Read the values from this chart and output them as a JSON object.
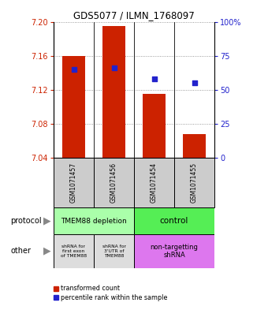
{
  "title": "GDS5077 / ILMN_1768097",
  "samples": [
    "GSM1071457",
    "GSM1071456",
    "GSM1071454",
    "GSM1071455"
  ],
  "bar_values": [
    7.16,
    7.195,
    7.115,
    7.068
  ],
  "bar_bottom": 7.04,
  "blue_values": [
    65,
    66,
    58,
    55
  ],
  "ylim_left": [
    7.04,
    7.2
  ],
  "ylim_right": [
    0,
    100
  ],
  "yticks_left": [
    7.04,
    7.08,
    7.12,
    7.16,
    7.2
  ],
  "yticks_right": [
    0,
    25,
    50,
    75,
    100
  ],
  "ytick_labels_right": [
    "0",
    "25",
    "50",
    "75",
    "100%"
  ],
  "bar_color": "#cc2200",
  "blue_color": "#2222cc",
  "protocol_labels": [
    "TMEM88 depletion",
    "control"
  ],
  "protocol_colors": [
    "#aaffaa",
    "#55ee55"
  ],
  "other_labels": [
    "shRNA for\nfirst exon\nof TMEM88",
    "shRNA for\n3'UTR of\nTMEM88",
    "non-targetting\nshRNA"
  ],
  "other_colors": [
    "#dddddd",
    "#dddddd",
    "#dd77ee"
  ],
  "legend_red": "transformed count",
  "legend_blue": "percentile rank within the sample",
  "left_labels": [
    "protocol",
    "other"
  ]
}
